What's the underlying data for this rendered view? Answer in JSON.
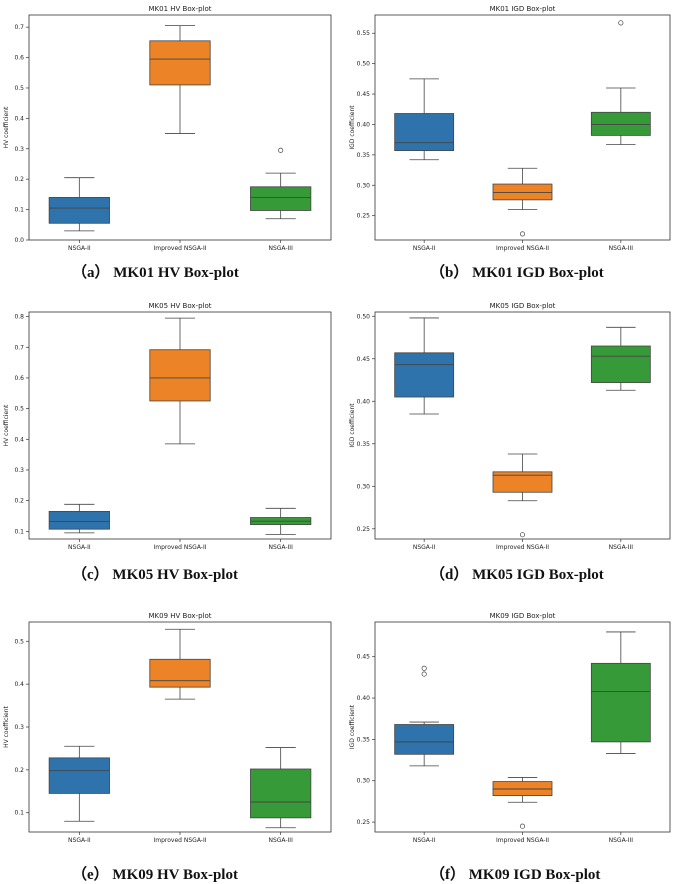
{
  "colors": {
    "NSGA-II": "#2f73ad",
    "Improved NSGA-II": "#ec8327",
    "NSGA-III": "#379a39"
  },
  "captions": [
    "（a） MK01 HV Box-plot",
    "（b） MK01 IGD Box-plot",
    "（c） MK05 HV Box-plot",
    "（d） MK05 IGD Box-plot",
    "（e） MK09 HV Box-plot",
    "（f） MK09 IGD Box-plot"
  ],
  "chart_data": [
    {
      "type": "box",
      "title": "MK01 HV Box-plot",
      "ylabel": "HV coefficient",
      "ylim": [
        0,
        0.74
      ],
      "yticks": [
        0.0,
        0.1,
        0.2,
        0.3,
        0.4,
        0.5,
        0.6,
        0.7
      ],
      "categories": [
        "NSGA-II",
        "Improved NSGA-II",
        "NSGA-III"
      ],
      "boxes": [
        {
          "min": 0.03,
          "q1": 0.055,
          "median": 0.105,
          "q3": 0.14,
          "max": 0.205,
          "outliers": []
        },
        {
          "min": 0.35,
          "q1": 0.51,
          "median": 0.595,
          "q3": 0.655,
          "max": 0.705,
          "outliers": []
        },
        {
          "min": 0.07,
          "q1": 0.097,
          "median": 0.14,
          "q3": 0.175,
          "max": 0.22,
          "outliers": [
            0.295
          ]
        }
      ]
    },
    {
      "type": "box",
      "title": "MK01 IGD Box-plot",
      "ylabel": "IGD coefficient",
      "ylim": [
        0.21,
        0.58
      ],
      "yticks": [
        0.25,
        0.3,
        0.35,
        0.4,
        0.45,
        0.5,
        0.55
      ],
      "categories": [
        "NSGA-II",
        "Improved NSGA-II",
        "NSGA-III"
      ],
      "boxes": [
        {
          "min": 0.342,
          "q1": 0.357,
          "median": 0.37,
          "q3": 0.418,
          "max": 0.475,
          "outliers": []
        },
        {
          "min": 0.26,
          "q1": 0.276,
          "median": 0.288,
          "q3": 0.302,
          "max": 0.328,
          "outliers": [
            0.22
          ]
        },
        {
          "min": 0.367,
          "q1": 0.382,
          "median": 0.4,
          "q3": 0.42,
          "max": 0.46,
          "outliers": [
            0.567
          ]
        }
      ]
    },
    {
      "type": "box",
      "title": "MK05 HV Box-plot",
      "ylabel": "HV coefficient",
      "ylim": [
        0.075,
        0.815
      ],
      "yticks": [
        0.1,
        0.2,
        0.3,
        0.4,
        0.5,
        0.6,
        0.7,
        0.8
      ],
      "categories": [
        "NSGA-II",
        "Improved NSGA-II",
        "NSGA-III"
      ],
      "boxes": [
        {
          "min": 0.095,
          "q1": 0.107,
          "median": 0.132,
          "q3": 0.165,
          "max": 0.188,
          "outliers": []
        },
        {
          "min": 0.385,
          "q1": 0.525,
          "median": 0.6,
          "q3": 0.692,
          "max": 0.795,
          "outliers": []
        },
        {
          "min": 0.09,
          "q1": 0.122,
          "median": 0.133,
          "q3": 0.145,
          "max": 0.175,
          "outliers": []
        }
      ]
    },
    {
      "type": "box",
      "title": "MK05 IGD Box-plot",
      "ylabel": "IGD coefficient",
      "ylim": [
        0.238,
        0.505
      ],
      "yticks": [
        0.25,
        0.3,
        0.35,
        0.4,
        0.45,
        0.5
      ],
      "categories": [
        "NSGA-II",
        "Improved NSGA-II",
        "NSGA-III"
      ],
      "boxes": [
        {
          "min": 0.385,
          "q1": 0.405,
          "median": 0.443,
          "q3": 0.457,
          "max": 0.498,
          "outliers": []
        },
        {
          "min": 0.283,
          "q1": 0.293,
          "median": 0.313,
          "q3": 0.317,
          "max": 0.338,
          "outliers": [
            0.243
          ]
        },
        {
          "min": 0.413,
          "q1": 0.422,
          "median": 0.453,
          "q3": 0.465,
          "max": 0.487,
          "outliers": []
        }
      ]
    },
    {
      "type": "box",
      "title": "MK09 HV Box-plot",
      "ylabel": "HV coefficient",
      "ylim": [
        0.055,
        0.545
      ],
      "yticks": [
        0.1,
        0.2,
        0.3,
        0.4,
        0.5
      ],
      "categories": [
        "NSGA-II",
        "Improved NSGA-II",
        "NSGA-III"
      ],
      "boxes": [
        {
          "min": 0.08,
          "q1": 0.145,
          "median": 0.198,
          "q3": 0.228,
          "max": 0.255,
          "outliers": []
        },
        {
          "min": 0.365,
          "q1": 0.393,
          "median": 0.408,
          "q3": 0.458,
          "max": 0.528,
          "outliers": []
        },
        {
          "min": 0.065,
          "q1": 0.088,
          "median": 0.125,
          "q3": 0.202,
          "max": 0.252,
          "outliers": []
        }
      ]
    },
    {
      "type": "box",
      "title": "MK09 IGD Box-plot",
      "ylabel": "IGD coefficient",
      "ylim": [
        0.238,
        0.492
      ],
      "yticks": [
        0.25,
        0.3,
        0.35,
        0.4,
        0.45
      ],
      "categories": [
        "NSGA-II",
        "Improved NSGA-II",
        "NSGA-III"
      ],
      "boxes": [
        {
          "min": 0.318,
          "q1": 0.332,
          "median": 0.347,
          "q3": 0.368,
          "max": 0.371,
          "outliers": [
            0.429,
            0.436
          ]
        },
        {
          "min": 0.274,
          "q1": 0.282,
          "median": 0.29,
          "q3": 0.299,
          "max": 0.304,
          "outliers": [
            0.245
          ]
        },
        {
          "min": 0.333,
          "q1": 0.347,
          "median": 0.408,
          "q3": 0.442,
          "max": 0.48,
          "outliers": []
        }
      ]
    }
  ]
}
